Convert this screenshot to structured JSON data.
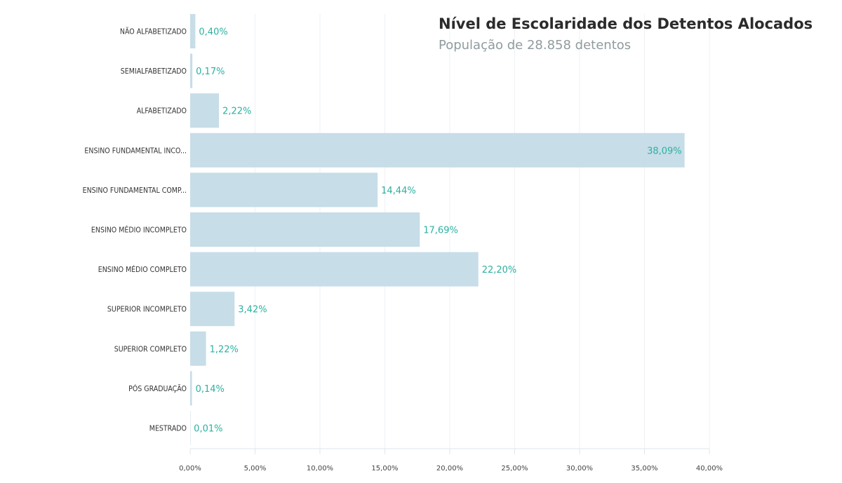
{
  "chart_data": {
    "type": "bar",
    "orientation": "horizontal",
    "title": "Nível de Escolaridade dos Detentos Alocados",
    "subtitle": "População de 28.858 detentos",
    "categories": [
      "NÃO ALFABETIZADO",
      "SEMIALFABETIZADO",
      "ALFABETIZADO",
      "ENSINO FUNDAMENTAL INCO...",
      "ENSINO FUNDAMENTAL COMP...",
      "ENSINO MÉDIO INCOMPLETO",
      "ENSINO MÉDIO COMPLETO",
      "SUPERIOR INCOMPLETO",
      "SUPERIOR COMPLETO",
      "PÓS GRADUAÇÃO",
      "MESTRADO"
    ],
    "values": [
      0.4,
      0.17,
      2.22,
      38.09,
      14.44,
      17.69,
      22.2,
      3.42,
      1.22,
      0.14,
      0.01
    ],
    "value_labels": [
      "0,40%",
      "0,17%",
      "2,22%",
      "38,09%",
      "14,44%",
      "17,69%",
      "22,20%",
      "3,42%",
      "1,22%",
      "0,14%",
      "0,01%"
    ],
    "xlim": [
      0,
      40
    ],
    "x_ticks": [
      0,
      5,
      10,
      15,
      20,
      25,
      30,
      35,
      40
    ],
    "x_tick_labels": [
      "0,00%",
      "5,00%",
      "10,00%",
      "15,00%",
      "20,00%",
      "25,00%",
      "30,00%",
      "35,00%",
      "40,00%"
    ],
    "xlabel": "",
    "ylabel": "",
    "grid": true,
    "colors": {
      "bar": "#c7dde8",
      "value_label": "#2bb1a0",
      "grid": "#eef1f3",
      "axis": "#e2e6e8"
    }
  }
}
